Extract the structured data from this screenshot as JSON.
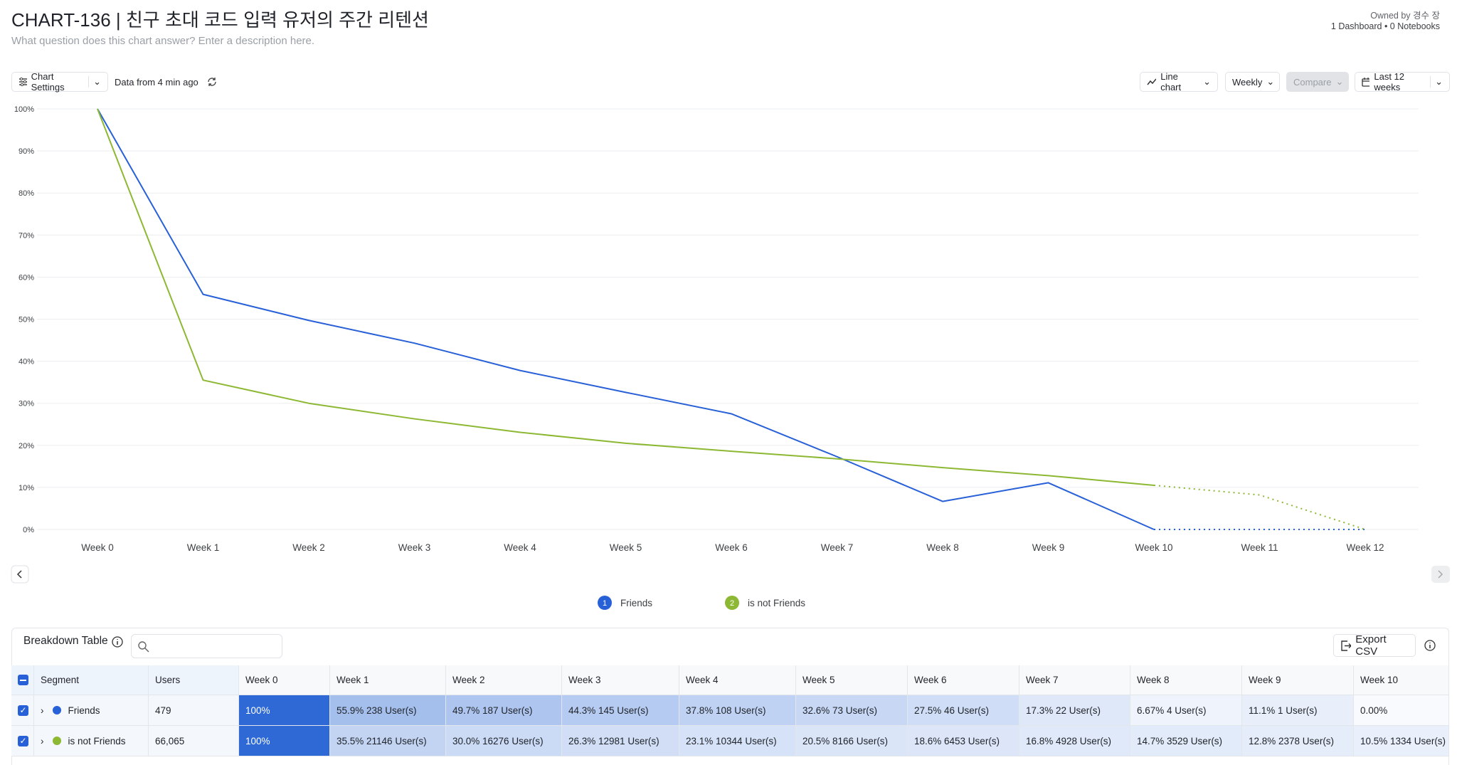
{
  "header": {
    "title": "CHART-136 | 친구 초대 코드 입력 유저의 주간 리텐션",
    "subtitle": "What question does this chart answer? Enter a description here.",
    "owner": "Owned by 경수 장",
    "links": "1 Dashboard • 0 Notebooks"
  },
  "toolbar": {
    "settings": "Chart Settings",
    "freshness": "Data from 4 min ago",
    "chart_type": "Line chart",
    "interval": "Weekly",
    "compare": "Compare",
    "range": "Last 12 weeks"
  },
  "chart_data": {
    "type": "line",
    "categories": [
      "Week 0",
      "Week 1",
      "Week 2",
      "Week 3",
      "Week 4",
      "Week 5",
      "Week 6",
      "Week 7",
      "Week 8",
      "Week 9",
      "Week 10",
      "Week 11",
      "Week 12"
    ],
    "ylim": [
      0,
      100
    ],
    "yticks": [
      {
        "value": 0,
        "label": "0%"
      },
      {
        "value": 10,
        "label": "10%"
      },
      {
        "value": 20,
        "label": "20%"
      },
      {
        "value": 30,
        "label": "30%"
      },
      {
        "value": 40,
        "label": "40%"
      },
      {
        "value": 50,
        "label": "50%"
      },
      {
        "value": 60,
        "label": "60%"
      },
      {
        "value": 70,
        "label": "70%"
      },
      {
        "value": 80,
        "label": "80%"
      },
      {
        "value": 90,
        "label": "90%"
      },
      {
        "value": 100,
        "label": "100%"
      }
    ],
    "grid": true,
    "dashed_from": 10,
    "series": [
      {
        "name": "Friends",
        "badge": "1",
        "color": "#2860d8",
        "values": [
          100,
          55.9,
          49.7,
          44.3,
          37.8,
          32.6,
          27.5,
          17.3,
          6.67,
          11.1,
          0,
          0,
          0
        ]
      },
      {
        "name": "is not Friends",
        "badge": "2",
        "color": "#8db833",
        "values": [
          100,
          35.5,
          30.0,
          26.3,
          23.1,
          20.5,
          18.6,
          16.8,
          14.7,
          12.8,
          10.5,
          8.2,
          0
        ]
      }
    ]
  },
  "table": {
    "title": "Breakdown Table",
    "export": "Export CSV",
    "columns": [
      "Segment",
      "Users",
      "Week 0",
      "Week 1",
      "Week 2",
      "Week 3",
      "Week 4",
      "Week 5",
      "Week 6",
      "Week 7",
      "Week 8",
      "Week 9",
      "Week 10"
    ],
    "rows": [
      {
        "segment": "Friends",
        "users": "479",
        "cells": [
          "100%",
          "55.9% 238 User(s)",
          "49.7% 187 User(s)",
          "44.3% 145 User(s)",
          "37.8% 108 User(s)",
          "32.6% 73 User(s)",
          "27.5% 46 User(s)",
          "17.3% 22 User(s)",
          "6.67% 4 User(s)",
          "11.1% 1 User(s)",
          "0.00%"
        ]
      },
      {
        "segment": "is not Friends",
        "users": "66,065",
        "cells": [
          "100%",
          "35.5% 21146 User(s)",
          "30.0% 16276 User(s)",
          "26.3% 12981 User(s)",
          "23.1% 10344 User(s)",
          "20.5% 8166 User(s)",
          "18.6% 6453 User(s)",
          "16.8% 4928 User(s)",
          "14.7% 3529 User(s)",
          "12.8% 2378 User(s)",
          "10.5% 1334 User(s)"
        ]
      }
    ]
  }
}
